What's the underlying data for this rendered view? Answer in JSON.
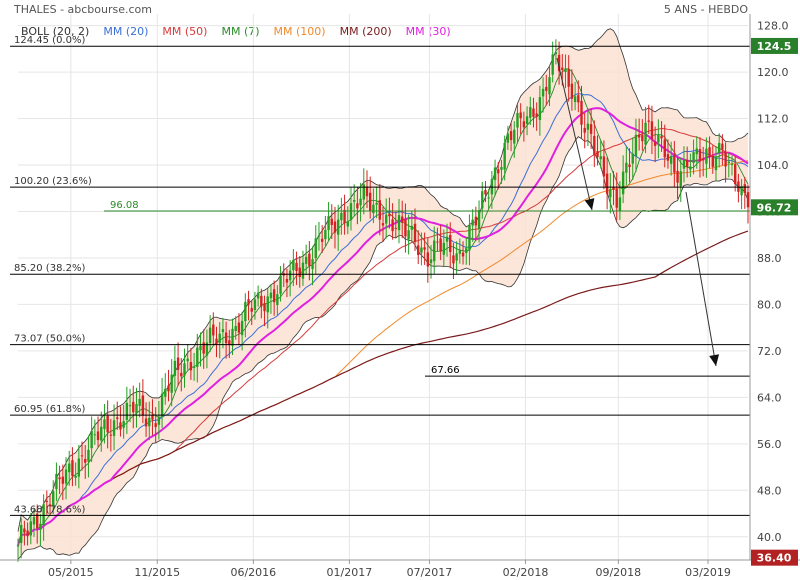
{
  "header": {
    "title": "THALES - abcbourse.com",
    "period": "5 ANS - HEBDO"
  },
  "legend": [
    {
      "label": "BOLL (20, 2)",
      "color": "#333333"
    },
    {
      "label": "MM (20)",
      "color": "#3b6fd8"
    },
    {
      "label": "MM (50)",
      "color": "#d63a3a"
    },
    {
      "label": "MM (7)",
      "color": "#2a8a2a"
    },
    {
      "label": "MM (100)",
      "color": "#f08a2c"
    },
    {
      "label": "MM (200)",
      "color": "#7b1b1b"
    },
    {
      "label": "MM (30)",
      "color": "#e020e0"
    }
  ],
  "colors": {
    "up": "#22a022",
    "down": "#d42222",
    "boll_fill": "#fbe0d0",
    "boll_line": "#333333",
    "mm20": "#3b6fd8",
    "mm50": "#d63a3a",
    "mm7": "#2a8a2a",
    "mm100": "#f08a2c",
    "mm200": "#7b1b1b",
    "mm30": "#e020e0",
    "fib": "#000000",
    "support": "#2a8a2a",
    "last_badge": "#2a7f2a",
    "max_badge": "#2a7f2a",
    "min_badge": "#b22222"
  },
  "chart_data": {
    "type": "candlestick",
    "title": "THALES - abcbourse.com",
    "subtitle": "5 ANS - HEBDO",
    "ylim": [
      36,
      130
    ],
    "y_ticks": [
      40.0,
      48.0,
      56.0,
      64.0,
      72.0,
      80.0,
      88.0,
      96.0,
      104.0,
      112.0,
      120.0,
      128.0
    ],
    "x_tick_labels": [
      "05/2015",
      "11/2015",
      "06/2016",
      "01/2017",
      "07/2017",
      "02/2018",
      "09/2018",
      "03/2019"
    ],
    "price_path": [
      [
        0,
        38.5
      ],
      [
        9,
        46
      ],
      [
        17,
        52
      ],
      [
        23,
        56
      ],
      [
        30,
        60
      ],
      [
        36,
        62
      ],
      [
        42,
        60
      ],
      [
        48,
        67
      ],
      [
        56,
        72
      ],
      [
        62,
        74
      ],
      [
        68,
        76
      ],
      [
        74,
        80
      ],
      [
        82,
        83
      ],
      [
        90,
        88
      ],
      [
        96,
        92
      ],
      [
        102,
        96
      ],
      [
        108,
        98
      ],
      [
        114,
        96
      ],
      [
        118,
        93
      ],
      [
        124,
        92
      ],
      [
        128,
        88
      ],
      [
        133,
        90
      ],
      [
        138,
        89
      ],
      [
        143,
        94
      ],
      [
        148,
        102
      ],
      [
        153,
        108
      ],
      [
        158,
        112
      ],
      [
        164,
        116
      ],
      [
        168,
        122
      ],
      [
        173,
        118
      ],
      [
        177,
        110
      ],
      [
        182,
        104
      ],
      [
        187,
        98
      ],
      [
        191,
        104
      ],
      [
        196,
        112
      ],
      [
        200,
        108
      ],
      [
        205,
        102
      ],
      [
        210,
        106
      ],
      [
        216,
        104
      ],
      [
        220,
        108
      ],
      [
        226,
        98
      ],
      [
        228,
        96.72
      ]
    ],
    "fibonacci_levels": [
      {
        "label": "124.45  (0.0%)",
        "value": 124.45
      },
      {
        "label": "100.20  (23.6%)",
        "value": 100.2
      },
      {
        "label": "85.20  (38.2%)",
        "value": 85.2
      },
      {
        "label": "73.07  (50.0%)",
        "value": 73.07
      },
      {
        "label": "60.95  (61.8%)",
        "value": 60.95
      },
      {
        "label": "43.68  (78.6%)",
        "value": 43.68
      }
    ],
    "support_line": {
      "label": "96.08",
      "value": 96.08
    },
    "target_line": {
      "label": "67.66",
      "value": 67.66
    },
    "price_badges": {
      "last": "96.72",
      "max": "124.5",
      "min": "36.40"
    },
    "indicators": [
      "BOLL (20, 2)",
      "MM (20)",
      "MM (50)",
      "MM (7)",
      "MM (100)",
      "MM (200)",
      "MM (30)"
    ]
  }
}
